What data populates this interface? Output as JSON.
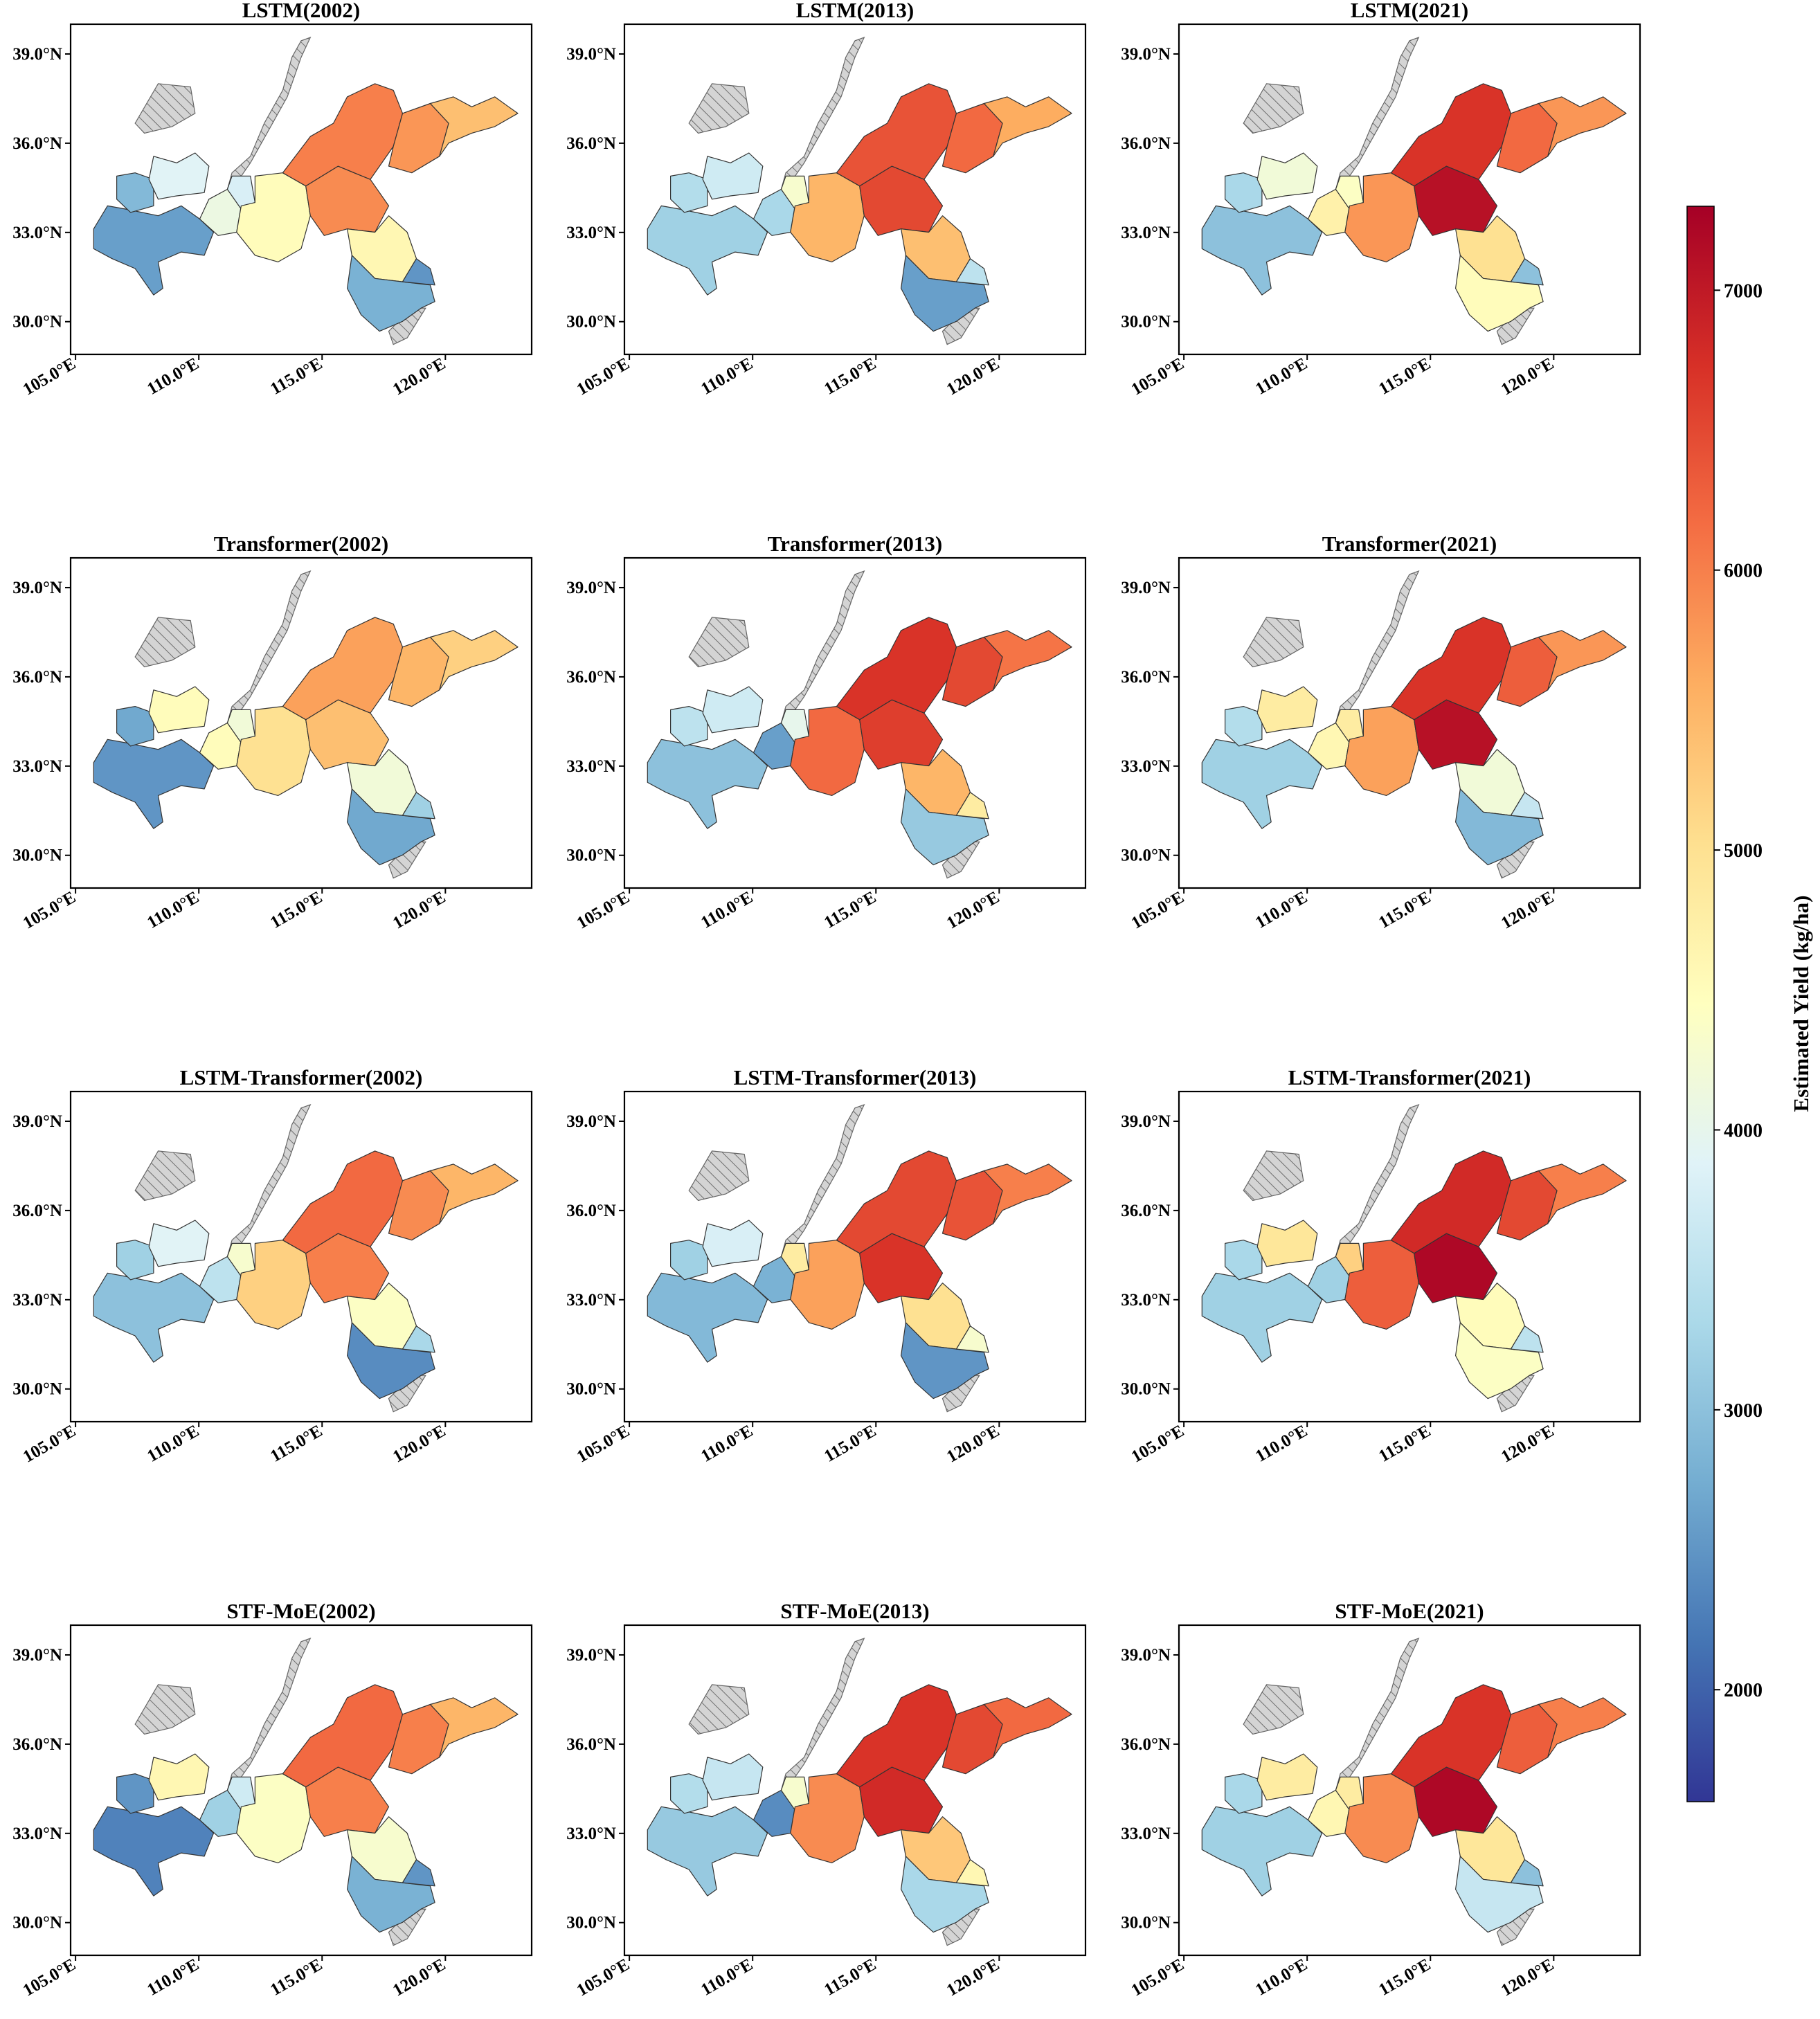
{
  "chart_data": {
    "type": "choropleth-map-grid",
    "colormap": "RdYlBu_r",
    "colorbar": {
      "label": "Estimated Yield (kg/ha)",
      "range": [
        1600,
        7300
      ],
      "ticks": [
        2000,
        3000,
        4000,
        5000,
        6000,
        7000
      ],
      "tick_labels": [
        "2000",
        "3000",
        "4000",
        "5000",
        "6000",
        "7000"
      ]
    },
    "axes": {
      "lon_ticks": [
        "105.0°E",
        "110.0°E",
        "115.0°E",
        "120.0°E"
      ],
      "lat_ticks": [
        "39.0°N",
        "36.0°N",
        "33.0°N",
        "30.0°N"
      ],
      "lon_values": [
        105,
        110,
        115,
        120
      ],
      "lat_values": [
        39,
        36,
        33,
        30
      ],
      "lon_range": [
        104.8,
        123.5
      ],
      "lat_range": [
        28.9,
        40.0
      ]
    },
    "no_data_pattern": "gray hatched",
    "regions": [
      "west",
      "west_sliver",
      "north_strip",
      "west_center",
      "connector",
      "center_west",
      "center_core",
      "center_east",
      "north_plain",
      "north_east",
      "east_peninsula",
      "south_core",
      "south_tip"
    ],
    "panels": [
      {
        "title": "LSTM(2002)",
        "values": [
          2600,
          2900,
          3900,
          4100,
          3800,
          4500,
          5900,
          4600,
          6000,
          5800,
          5400,
          2800,
          2500
        ]
      },
      {
        "title": "LSTM(2013)",
        "values": [
          3200,
          3400,
          3700,
          3300,
          4300,
          5500,
          6500,
          5400,
          6400,
          6200,
          5600,
          2600,
          3500
        ]
      },
      {
        "title": "LSTM(2021)",
        "values": [
          3000,
          3300,
          4200,
          4700,
          4400,
          5800,
          7100,
          5000,
          6700,
          6200,
          5800,
          4500,
          3000
        ]
      },
      {
        "title": "Transformer(2002)",
        "values": [
          2500,
          2700,
          4500,
          4500,
          4200,
          5000,
          5400,
          4200,
          5700,
          5500,
          5200,
          2700,
          3200
        ]
      },
      {
        "title": "Transformer(2013)",
        "values": [
          3000,
          3500,
          3700,
          2600,
          4000,
          6200,
          6600,
          5500,
          6700,
          6500,
          6100,
          3100,
          4800
        ]
      },
      {
        "title": "Transformer(2021)",
        "values": [
          3200,
          3400,
          4800,
          4600,
          4800,
          5700,
          7100,
          4200,
          6700,
          6300,
          5800,
          2900,
          3600
        ]
      },
      {
        "title": "LSTM-Transformer(2002)",
        "values": [
          3000,
          3200,
          3900,
          3500,
          4300,
          5200,
          6000,
          4400,
          6200,
          5900,
          5500,
          2400,
          3300
        ]
      },
      {
        "title": "LSTM-Transformer(2013)",
        "values": [
          2900,
          3200,
          3800,
          2800,
          4800,
          5700,
          6700,
          5000,
          6500,
          6400,
          6000,
          2500,
          4300
        ]
      },
      {
        "title": "LSTM-Transformer(2021)",
        "values": [
          3200,
          3300,
          4900,
          3200,
          5200,
          6300,
          7200,
          4500,
          6800,
          6500,
          6000,
          4400,
          3500
        ]
      },
      {
        "title": "STF-MoE(2002)",
        "values": [
          2300,
          2500,
          4600,
          3200,
          3700,
          4400,
          6000,
          4300,
          6200,
          6000,
          5500,
          2800,
          2500
        ]
      },
      {
        "title": "STF-MoE(2013)",
        "values": [
          3100,
          3400,
          3600,
          2400,
          4300,
          5900,
          6800,
          5300,
          6700,
          6500,
          6200,
          3300,
          4600
        ]
      },
      {
        "title": "STF-MoE(2021)",
        "values": [
          3200,
          3300,
          4800,
          4600,
          4800,
          5900,
          7200,
          4900,
          6700,
          6300,
          6000,
          3600,
          3000
        ]
      }
    ]
  }
}
